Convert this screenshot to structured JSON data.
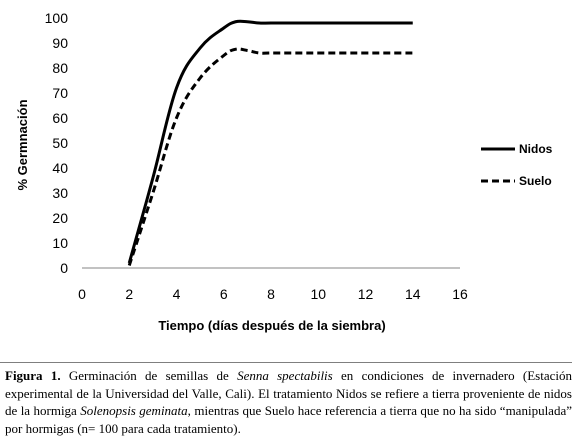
{
  "chart_data": {
    "type": "line",
    "xlabel": "Tiempo (días después de la siembra)",
    "ylabel": "% Germnación",
    "xlim": [
      0,
      16
    ],
    "ylim": [
      0,
      100
    ],
    "xticks": [
      0,
      2,
      4,
      6,
      8,
      10,
      12,
      14,
      16
    ],
    "yticks": [
      0,
      10,
      20,
      30,
      40,
      50,
      60,
      70,
      80,
      90,
      100
    ],
    "grid": false,
    "legend_position": "right",
    "series": [
      {
        "name": "Nidos",
        "style": "solid",
        "color": "#000000",
        "points": [
          [
            2,
            2
          ],
          [
            3,
            36
          ],
          [
            4,
            72
          ],
          [
            5,
            88
          ],
          [
            6,
            96
          ],
          [
            6.5,
            98.5
          ],
          [
            7,
            98.5
          ],
          [
            7.5,
            98
          ],
          [
            8,
            98
          ],
          [
            9,
            98
          ],
          [
            10,
            98
          ],
          [
            11,
            98
          ],
          [
            12,
            98
          ],
          [
            13,
            98
          ],
          [
            14,
            98
          ]
        ]
      },
      {
        "name": "Suelo",
        "style": "dashed",
        "color": "#000000",
        "points": [
          [
            2,
            1
          ],
          [
            3,
            30
          ],
          [
            4,
            60
          ],
          [
            5,
            76
          ],
          [
            6,
            85
          ],
          [
            6.5,
            87.5
          ],
          [
            7,
            87
          ],
          [
            7.5,
            86
          ],
          [
            8,
            86
          ],
          [
            9,
            86
          ],
          [
            10,
            86
          ],
          [
            11,
            86
          ],
          [
            12,
            86
          ],
          [
            13,
            86
          ],
          [
            14,
            86
          ]
        ]
      }
    ]
  },
  "caption": {
    "label": "Figura 1.",
    "text_1": " Germinación de semillas de ",
    "species_1": "Senna spectabilis",
    "text_2": " en condiciones de invernadero (Estación experimental de la Universidad del Valle, Cali). El tratamiento Nidos se refiere a tierra proveniente de nidos de la hormiga ",
    "species_2": "Solenopsis geminata",
    "text_3": ", mientras que Suelo hace referencia a tierra que no ha sido “manipulada” por hormigas (n= 100 para cada tratamiento)."
  }
}
